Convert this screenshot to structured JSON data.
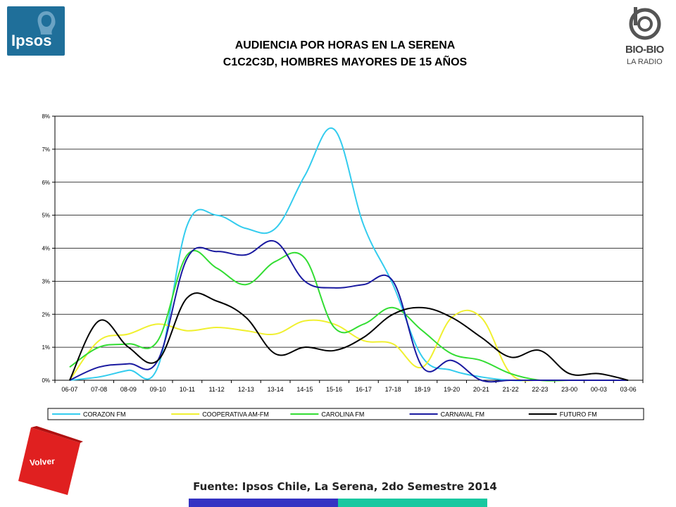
{
  "logos": {
    "ipsos": "Ipsos",
    "biobio_line1": "BIO-BIO",
    "biobio_line2": "LA RADIO"
  },
  "title": {
    "line1": "AUDIENCIA POR HORAS EN LA SERENA",
    "line2": "C1C2C3D, HOMBRES MAYORES DE 15 AÑOS"
  },
  "source": "Fuente: Ipsos Chile, La Serena, 2do Semestre 2014",
  "volver_label": "Volver",
  "colors": {
    "ipsos_blue": "#1f6f9a",
    "volver_red": "#e02020",
    "bottom_blue": "#3433c3",
    "bottom_green": "#19c8a0"
  },
  "chart_data": {
    "type": "line",
    "title": "",
    "xlabel": "",
    "ylabel": "",
    "ylim": [
      0,
      8
    ],
    "yticks": [
      "0%",
      "1%",
      "2%",
      "3%",
      "4%",
      "5%",
      "6%",
      "7%",
      "8%"
    ],
    "grid": true,
    "legend_position": "bottom",
    "categories": [
      "06-07",
      "07-08",
      "08-09",
      "09-10",
      "10-11",
      "11-12",
      "12-13",
      "13-14",
      "14-15",
      "15-16",
      "16-17",
      "17-18",
      "18-19",
      "19-20",
      "20-21",
      "21-22",
      "22-23",
      "23-00",
      "00-03",
      "03-06"
    ],
    "series": [
      {
        "name": "CORAZON FM",
        "color": "#33ccee",
        "values": [
          0.0,
          0.1,
          0.3,
          0.4,
          4.7,
          5.0,
          4.6,
          4.6,
          6.2,
          7.6,
          4.7,
          2.9,
          0.7,
          0.3,
          0.1,
          0.0,
          0.0,
          0.0,
          0.0,
          0.0
        ]
      },
      {
        "name": "COOPERATIVA AM-FM",
        "color": "#f0f030",
        "values": [
          0.0,
          1.2,
          1.4,
          1.7,
          1.5,
          1.6,
          1.5,
          1.4,
          1.8,
          1.7,
          1.2,
          1.1,
          0.4,
          1.9,
          1.9,
          0.2,
          0.0,
          0.0,
          0.0,
          0.0
        ]
      },
      {
        "name": "CAROLINA FM",
        "color": "#33dd33",
        "values": [
          0.4,
          1.0,
          1.1,
          1.2,
          3.8,
          3.4,
          2.9,
          3.6,
          3.7,
          1.6,
          1.7,
          2.2,
          1.5,
          0.8,
          0.6,
          0.2,
          0.0,
          0.0,
          0.0,
          0.0
        ]
      },
      {
        "name": "CARNAVAL FM",
        "color": "#1a1aa0",
        "values": [
          0.0,
          0.4,
          0.5,
          0.6,
          3.7,
          3.9,
          3.8,
          4.2,
          3.0,
          2.8,
          2.9,
          3.0,
          0.4,
          0.6,
          0.0,
          0.0,
          0.0,
          0.0,
          0.0,
          0.0
        ]
      },
      {
        "name": "FUTURO FM",
        "color": "#000000",
        "values": [
          0.0,
          1.8,
          1.0,
          0.6,
          2.5,
          2.4,
          1.9,
          0.8,
          1.0,
          0.9,
          1.3,
          2.0,
          2.2,
          1.9,
          1.3,
          0.7,
          0.9,
          0.2,
          0.2,
          0.0
        ]
      }
    ]
  }
}
